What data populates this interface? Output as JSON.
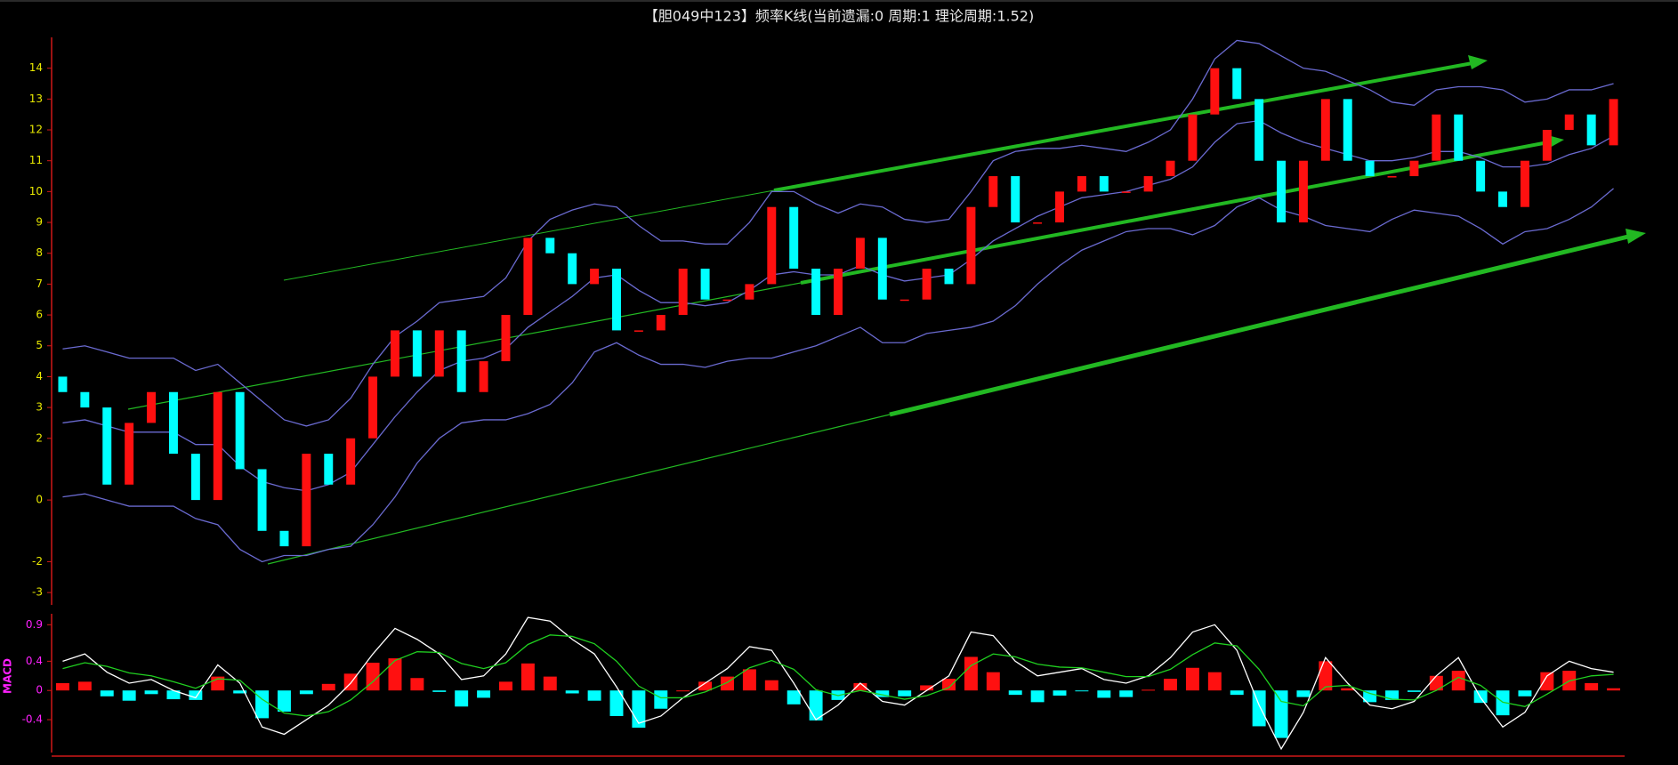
{
  "chart_data": [
    {
      "type": "candlestick",
      "title": "【胆049中123】频率K线(当前遗漏:0 周期:1 理论周期:1.52)",
      "up_color": "#ff1010",
      "down_color": "#00ffff",
      "open": [
        4,
        3.5,
        3,
        0.5,
        2.5,
        3.5,
        1.5,
        0,
        3.5,
        1,
        -1,
        -1.5,
        1.5,
        0.5,
        2,
        4,
        5.5,
        4,
        5.5,
        3.5,
        4.5,
        6,
        8.5,
        8,
        7,
        7.5,
        5.5,
        5.5,
        6,
        7.5,
        6.5,
        6.5,
        7,
        9.5,
        7.5,
        6,
        7.5,
        8.5,
        6.5,
        6.5,
        7.5,
        7,
        9.5,
        10.5,
        9,
        9,
        10,
        10.5,
        10,
        10,
        10.5,
        11,
        12.5,
        14,
        13,
        11,
        9,
        11,
        13,
        11,
        10.5,
        10.5,
        11,
        12.5,
        11,
        10,
        9.5,
        11,
        12,
        12.5,
        11.5
      ],
      "close": [
        3.5,
        3,
        0.5,
        2.5,
        3.5,
        1.5,
        0,
        3.5,
        1,
        -1,
        -1.5,
        1.5,
        0.5,
        2,
        4,
        5.5,
        4,
        5.5,
        3.5,
        4.5,
        6,
        8.5,
        8,
        7,
        7.5,
        5.5,
        5.5,
        6,
        7.5,
        6.5,
        6.5,
        7,
        9.5,
        7.5,
        6,
        7.5,
        8.5,
        6.5,
        6.5,
        7.5,
        7,
        9.5,
        10.5,
        9,
        9,
        10,
        10.5,
        10,
        10,
        10.5,
        11,
        12.5,
        14,
        13,
        11,
        9,
        11,
        13,
        11,
        10.5,
        10.5,
        11,
        12.5,
        11,
        10,
        9.5,
        11,
        12,
        12.5,
        11.5,
        13
      ],
      "bands": [
        {
          "color": "#6a6ad0",
          "values": [
            4.9,
            5,
            4.8,
            4.6,
            4.6,
            4.6,
            4.2,
            4.4,
            3.8,
            3.2,
            2.6,
            2.4,
            2.6,
            3.3,
            4.4,
            5.3,
            5.8,
            6.4,
            6.5,
            6.6,
            7.2,
            8.4,
            9.1,
            9.4,
            9.6,
            9.5,
            8.9,
            8.4,
            8.4,
            8.3,
            8.3,
            9,
            10,
            10,
            9.6,
            9.3,
            9.6,
            9.5,
            9.1,
            9,
            9.1,
            10,
            11,
            11.3,
            11.4,
            11.4,
            11.5,
            11.4,
            11.3,
            11.6,
            12,
            13,
            14.3,
            14.9,
            14.8,
            14.4,
            14,
            13.9,
            13.6,
            13.3,
            12.9,
            12.8,
            13.3,
            13.4,
            13.4,
            13.3,
            12.9,
            13,
            13.3,
            13.3,
            13.5
          ]
        },
        {
          "color": "#6a6ad0",
          "values": [
            2.5,
            2.6,
            2.4,
            2.2,
            2.2,
            2.2,
            1.8,
            1.8,
            1.1,
            0.6,
            0.4,
            0.3,
            0.5,
            0.9,
            1.8,
            2.7,
            3.5,
            4.2,
            4.5,
            4.6,
            4.9,
            5.6,
            6.1,
            6.6,
            7.2,
            7.3,
            6.8,
            6.4,
            6.4,
            6.3,
            6.4,
            6.8,
            7.3,
            7.4,
            7.3,
            7.3,
            7.6,
            7.3,
            7.1,
            7.2,
            7.3,
            7.8,
            8.4,
            8.8,
            9.2,
            9.5,
            9.8,
            9.9,
            10,
            10.2,
            10.4,
            10.8,
            11.6,
            12.2,
            12.3,
            11.9,
            11.6,
            11.4,
            11.2,
            11,
            11,
            11.1,
            11.3,
            11.3,
            11.1,
            10.8,
            10.8,
            10.9,
            11.2,
            11.4,
            11.8
          ]
        },
        {
          "color": "#6a6ad0",
          "values": [
            0.1,
            0.2,
            0,
            -0.2,
            -0.2,
            -0.2,
            -0.6,
            -0.8,
            -1.6,
            -2,
            -1.8,
            -1.8,
            -1.6,
            -1.5,
            -0.8,
            0.1,
            1.2,
            2,
            2.5,
            2.6,
            2.6,
            2.8,
            3.1,
            3.8,
            4.8,
            5.1,
            4.7,
            4.4,
            4.4,
            4.3,
            4.5,
            4.6,
            4.6,
            4.8,
            5,
            5.3,
            5.6,
            5.1,
            5.1,
            5.4,
            5.5,
            5.6,
            5.8,
            6.3,
            7,
            7.6,
            8.1,
            8.4,
            8.7,
            8.8,
            8.8,
            8.6,
            8.9,
            9.5,
            9.8,
            9.4,
            9.2,
            8.9,
            8.8,
            8.7,
            9.1,
            9.4,
            9.3,
            9.2,
            8.8,
            8.3,
            8.7,
            8.8,
            9.1,
            9.5,
            10.1
          ]
        }
      ],
      "ylim": [
        -3.4,
        15
      ],
      "yticks": [
        14,
        13,
        12,
        11,
        10,
        9,
        8,
        7,
        6,
        5,
        4,
        3,
        2,
        0,
        -2,
        -3
      ],
      "tick_color": "#e8e800"
    },
    {
      "type": "macd",
      "label": "MACD",
      "lines": [
        {
          "color": "#ffffff",
          "values": [
            0.4,
            0.5,
            0.25,
            0.1,
            0.15,
            0,
            -0.1,
            0.35,
            0.1,
            -0.5,
            -0.6,
            -0.4,
            -0.2,
            0.1,
            0.5,
            0.85,
            0.7,
            0.5,
            0.15,
            0.2,
            0.5,
            1,
            0.95,
            0.7,
            0.5,
            0.05,
            -0.45,
            -0.35,
            -0.1,
            0.1,
            0.3,
            0.6,
            0.55,
            0.1,
            -0.4,
            -0.2,
            0.1,
            -0.15,
            -0.2,
            0,
            0.2,
            0.8,
            0.75,
            0.4,
            0.2,
            0.25,
            0.3,
            0.15,
            0.1,
            0.2,
            0.45,
            0.8,
            0.9,
            0.55,
            -0.2,
            -0.8,
            -0.3,
            0.45,
            0.1,
            -0.2,
            -0.25,
            -0.15,
            0.2,
            0.45,
            -0.1,
            -0.5,
            -0.3,
            0.2,
            0.4,
            0.3,
            0.25
          ]
        },
        {
          "color": "#20d020",
          "values": [
            0.3,
            0.38,
            0.33,
            0.24,
            0.2,
            0.12,
            0.03,
            0.16,
            0.14,
            -0.12,
            -0.31,
            -0.35,
            -0.29,
            -0.13,
            0.12,
            0.41,
            0.53,
            0.52,
            0.37,
            0.3,
            0.38,
            0.63,
            0.76,
            0.74,
            0.64,
            0.4,
            0.06,
            -0.1,
            -0.1,
            -0.02,
            0.11,
            0.31,
            0.41,
            0.29,
            0.01,
            -0.07,
            0,
            -0.06,
            -0.12,
            -0.07,
            0.04,
            0.34,
            0.5,
            0.46,
            0.36,
            0.32,
            0.31,
            0.25,
            0.19,
            0.19,
            0.29,
            0.49,
            0.65,
            0.61,
            0.29,
            -0.15,
            -0.21,
            0.05,
            0.07,
            -0.04,
            -0.12,
            -0.13,
            0,
            0.18,
            0.07,
            -0.16,
            -0.22,
            -0.05,
            0.13,
            0.2,
            0.22
          ]
        }
      ],
      "histogram": {
        "up_color": "#ff1010",
        "down_color": "#00ffff",
        "values": [
          0.1,
          0.12,
          -0.08,
          -0.14,
          -0.05,
          -0.12,
          -0.13,
          0.19,
          -0.04,
          -0.38,
          -0.29,
          -0.05,
          0.09,
          0.23,
          0.38,
          0.44,
          0.17,
          -0.02,
          -0.22,
          -0.1,
          0.12,
          0.37,
          0.19,
          -0.04,
          -0.14,
          -0.35,
          -0.51,
          -0.25,
          0,
          0.12,
          0.19,
          0.29,
          0.14,
          -0.19,
          -0.41,
          -0.13,
          0.1,
          -0.09,
          -0.08,
          0.07,
          0.16,
          0.46,
          0.25,
          -0.06,
          -0.16,
          -0.07,
          -0.01,
          -0.1,
          -0.09,
          0.01,
          0.16,
          0.31,
          0.25,
          -0.06,
          -0.49,
          -0.65,
          -0.09,
          0.4,
          0.03,
          -0.16,
          -0.13,
          -0.02,
          0.2,
          0.27,
          -0.17,
          -0.34,
          -0.08,
          0.25,
          0.27,
          0.1,
          0.03
        ]
      },
      "ylim": [
        -0.85,
        1.05
      ],
      "yticks": [
        0.9,
        0.4,
        0,
        -0.4
      ],
      "tick_color": "#ff20ff"
    }
  ]
}
